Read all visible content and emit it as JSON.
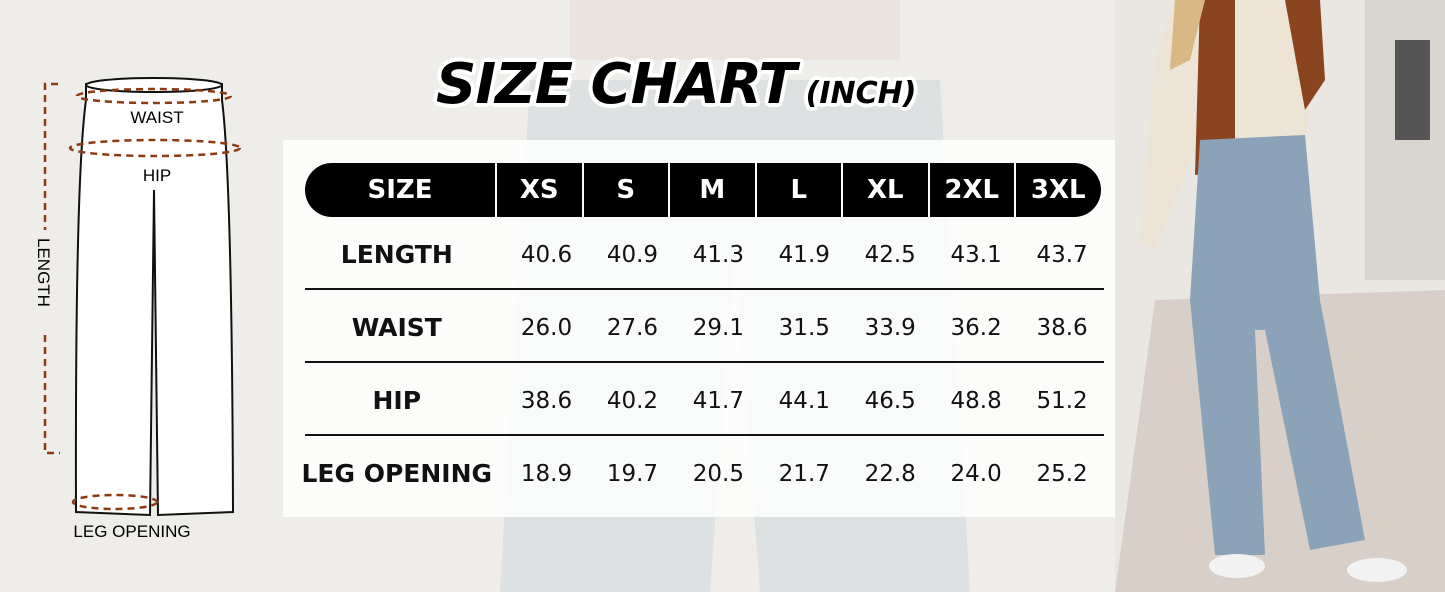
{
  "title": {
    "main": "SIZE CHART",
    "unit": "(INCH)"
  },
  "diagram": {
    "labels": {
      "waist": "WAIST",
      "hip": "HIP",
      "length": "LENGTH",
      "leg_opening": "LEG OPENING"
    },
    "measure_color": "#8b3a12"
  },
  "table": {
    "header": [
      "SIZE",
      "XS",
      "S",
      "M",
      "L",
      "XL",
      "2XL",
      "3XL"
    ],
    "rows": [
      {
        "label": "LENGTH",
        "values": [
          "40.6",
          "40.9",
          "41.3",
          "41.9",
          "42.5",
          "43.1",
          "43.7"
        ]
      },
      {
        "label": "WAIST",
        "values": [
          "26.0",
          "27.6",
          "29.1",
          "31.5",
          "33.9",
          "36.2",
          "38.6"
        ]
      },
      {
        "label": "HIP",
        "values": [
          "38.6",
          "40.2",
          "41.7",
          "44.1",
          "46.5",
          "48.8",
          "51.2"
        ]
      },
      {
        "label": "LEG OPENING",
        "values": [
          "18.9",
          "19.7",
          "20.5",
          "21.7",
          "22.8",
          "24.0",
          "25.2"
        ]
      }
    ]
  }
}
